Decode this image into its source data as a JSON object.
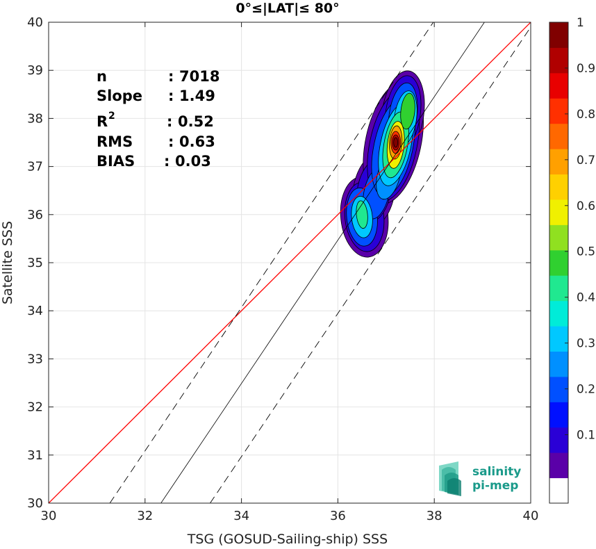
{
  "chart_data": {
    "type": "contour-density-scatter",
    "title": "0°≤|LAT|≤ 80°",
    "xlabel": "TSG (GOSUD-Sailing-ship) SSS",
    "ylabel": "Satellite SSS",
    "xlim": [
      30,
      40
    ],
    "ylim": [
      30,
      40
    ],
    "x_ticks": [
      "30",
      "32",
      "34",
      "36",
      "38",
      "40"
    ],
    "y_ticks": [
      "30",
      "31",
      "32",
      "33",
      "34",
      "35",
      "36",
      "37",
      "38",
      "39",
      "40"
    ],
    "grid": true,
    "stats": [
      {
        "label": "n",
        "sep": ": ",
        "value": "7018"
      },
      {
        "label": "Slope",
        "sep": ": ",
        "value": "1.49"
      },
      {
        "label": "R",
        "sup": "2",
        "sep": ": ",
        "value": "0.52"
      },
      {
        "label": "RMS",
        "sep": ": ",
        "value": "0.63"
      },
      {
        "label": "BIAS",
        "sep": ": ",
        "value": "0.03"
      }
    ],
    "lines": {
      "identity": {
        "color": "#ff0000",
        "x": [
          30,
          40
        ],
        "y": [
          30,
          40
        ]
      },
      "fit": {
        "color": "#000000",
        "slope": 1.49,
        "x0": 32.33,
        "y0": 30,
        "x1": 39.04,
        "y1": 40
      },
      "fit_upper": {
        "color": "#000000",
        "dash": true,
        "x0": 31.27,
        "y0": 30,
        "x1": 37.98,
        "y1": 40
      },
      "fit_lower": {
        "color": "#000000",
        "dash": true,
        "x0": 33.35,
        "y0": 30,
        "x1": 40,
        "y1": 39.9
      }
    },
    "density_peaks": [
      {
        "x": 37.2,
        "y": 37.5,
        "level": 1.0
      },
      {
        "x": 37.5,
        "y": 38.2,
        "level": 0.5
      },
      {
        "x": 36.5,
        "y": 36.05,
        "level": 0.45
      }
    ],
    "colorbar": {
      "ticks": [
        "0.1",
        "0.2",
        "0.3",
        "0.4",
        "0.5",
        "0.6",
        "0.7",
        "0.8",
        "0.9",
        "1"
      ],
      "colors": [
        "#ffffff",
        "#5a00a8",
        "#2a00d6",
        "#0010ff",
        "#0050ff",
        "#0090ff",
        "#00c8ff",
        "#00ecd8",
        "#20e890",
        "#30d030",
        "#90e020",
        "#f0f000",
        "#ffd000",
        "#ffa000",
        "#ff6800",
        "#ff3000",
        "#e80000",
        "#b00000",
        "#800000"
      ]
    }
  },
  "logo": {
    "line1": "salinity",
    "line2": "pi-mep"
  }
}
